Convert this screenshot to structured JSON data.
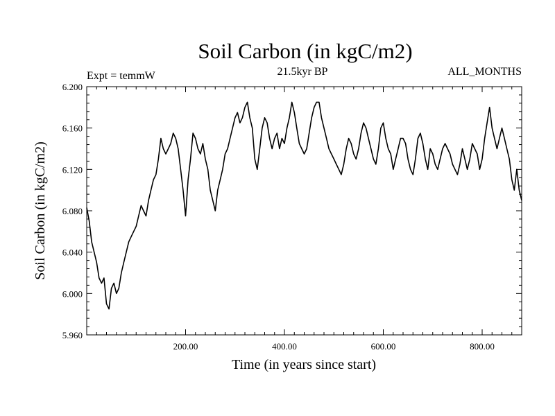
{
  "chart_data": {
    "type": "line",
    "title": "Soil Carbon (in kgC/m2)",
    "experiment_label": "Expt = temmW",
    "period_label": "21.5kyr BP",
    "months_label": "ALL_MONTHS",
    "xlabel": "Time (in years since start)",
    "ylabel": "Soil Carbon (in kgC/m2)",
    "xlim": [
      0,
      880
    ],
    "ylim": [
      5.96,
      6.2
    ],
    "xticks": [
      200,
      400,
      600,
      800
    ],
    "xtick_labels": [
      "200.00",
      "400.00",
      "600.00",
      "800.00"
    ],
    "yticks": [
      5.96,
      6.0,
      6.04,
      6.08,
      6.12,
      6.16,
      6.2
    ],
    "ytick_labels": [
      "5.960",
      "6.000",
      "6.040",
      "6.080",
      "6.120",
      "6.160",
      "6.200"
    ],
    "grid": false,
    "series": [
      {
        "name": "Soil Carbon",
        "x": [
          0,
          5,
          10,
          15,
          20,
          25,
          30,
          35,
          40,
          45,
          50,
          55,
          60,
          65,
          70,
          75,
          80,
          85,
          90,
          95,
          100,
          105,
          110,
          115,
          120,
          125,
          130,
          135,
          140,
          145,
          150,
          155,
          160,
          165,
          170,
          175,
          180,
          185,
          190,
          195,
          200,
          205,
          210,
          215,
          220,
          225,
          230,
          235,
          240,
          245,
          250,
          255,
          260,
          265,
          270,
          275,
          280,
          285,
          290,
          295,
          300,
          305,
          310,
          315,
          320,
          325,
          330,
          335,
          340,
          345,
          350,
          355,
          360,
          365,
          370,
          375,
          380,
          385,
          390,
          395,
          400,
          405,
          410,
          415,
          420,
          425,
          430,
          435,
          440,
          445,
          450,
          455,
          460,
          465,
          470,
          475,
          480,
          485,
          490,
          495,
          500,
          505,
          510,
          515,
          520,
          525,
          530,
          535,
          540,
          545,
          550,
          555,
          560,
          565,
          570,
          575,
          580,
          585,
          590,
          595,
          600,
          605,
          610,
          615,
          620,
          625,
          630,
          635,
          640,
          645,
          650,
          655,
          660,
          665,
          670,
          675,
          680,
          685,
          690,
          695,
          700,
          705,
          710,
          715,
          720,
          725,
          730,
          735,
          740,
          745,
          750,
          755,
          760,
          765,
          770,
          775,
          780,
          785,
          790,
          795,
          800,
          805,
          810,
          815,
          820,
          825,
          830,
          835,
          840,
          845,
          850,
          855,
          860,
          865,
          870,
          875,
          880
        ],
        "values": [
          6.083,
          6.07,
          6.05,
          6.04,
          6.03,
          6.015,
          6.01,
          6.015,
          5.99,
          5.985,
          6.005,
          6.01,
          6.0,
          6.005,
          6.02,
          6.03,
          6.04,
          6.05,
          6.055,
          6.06,
          6.065,
          6.075,
          6.085,
          6.08,
          6.075,
          6.09,
          6.1,
          6.11,
          6.115,
          6.13,
          6.15,
          6.14,
          6.135,
          6.14,
          6.145,
          6.155,
          6.15,
          6.14,
          6.12,
          6.1,
          6.075,
          6.11,
          6.13,
          6.155,
          6.15,
          6.14,
          6.135,
          6.145,
          6.13,
          6.12,
          6.1,
          6.09,
          6.08,
          6.1,
          6.11,
          6.12,
          6.135,
          6.14,
          6.15,
          6.16,
          6.17,
          6.175,
          6.165,
          6.17,
          6.18,
          6.185,
          6.17,
          6.16,
          6.13,
          6.12,
          6.14,
          6.16,
          6.17,
          6.165,
          6.15,
          6.14,
          6.15,
          6.155,
          6.14,
          6.15,
          6.145,
          6.16,
          6.17,
          6.185,
          6.175,
          6.16,
          6.145,
          6.14,
          6.135,
          6.14,
          6.155,
          6.17,
          6.18,
          6.185,
          6.185,
          6.17,
          6.16,
          6.15,
          6.14,
          6.135,
          6.13,
          6.125,
          6.12,
          6.115,
          6.125,
          6.14,
          6.15,
          6.145,
          6.135,
          6.13,
          6.14,
          6.155,
          6.165,
          6.16,
          6.15,
          6.14,
          6.13,
          6.125,
          6.14,
          6.16,
          6.165,
          6.15,
          6.14,
          6.135,
          6.12,
          6.13,
          6.14,
          6.15,
          6.15,
          6.145,
          6.13,
          6.12,
          6.115,
          6.13,
          6.15,
          6.155,
          6.145,
          6.13,
          6.12,
          6.14,
          6.135,
          6.125,
          6.12,
          6.13,
          6.14,
          6.145,
          6.14,
          6.135,
          6.125,
          6.12,
          6.115,
          6.125,
          6.14,
          6.13,
          6.12,
          6.13,
          6.145,
          6.14,
          6.135,
          6.12,
          6.13,
          6.15,
          6.165,
          6.18,
          6.16,
          6.15,
          6.14,
          6.15,
          6.16,
          6.15,
          6.14,
          6.13,
          6.11,
          6.1,
          6.12,
          6.1,
          6.09
        ]
      }
    ]
  }
}
